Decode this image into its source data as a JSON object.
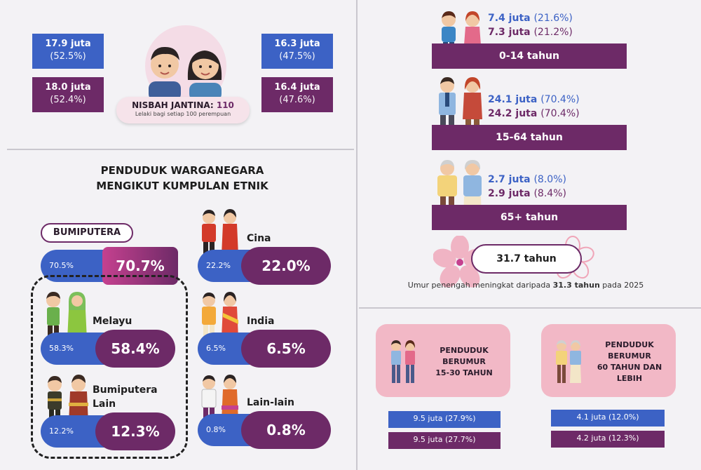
{
  "gender": {
    "male_left": {
      "value": "17.9 juta",
      "pct": "(52.5%)"
    },
    "female_left": {
      "value": "18.0 juta",
      "pct": "(52.4%)"
    },
    "male_right": {
      "value": "16.3 juta",
      "pct": "(47.5%)"
    },
    "female_right": {
      "value": "16.4 juta",
      "pct": "(47.6%)"
    },
    "ratio_label": "NISBAH JANTINA:",
    "ratio_value": "110",
    "ratio_note": "Lelaki bagi setiap 100 perempuan"
  },
  "ethnic": {
    "title_line1": "PENDUDUK WARGANEGARA",
    "title_line2": "MENGIKUT KUMPULAN ETNIK",
    "bumiputera": {
      "label": "BUMIPUTERA",
      "old": "70.5%",
      "new": "70.7%"
    },
    "melayu": {
      "label": "Melayu",
      "old": "58.3%",
      "new": "58.4%"
    },
    "bumi_lain": {
      "label_line1": "Bumiputera",
      "label_line2": "Lain",
      "old": "12.2%",
      "new": "12.3%"
    },
    "cina": {
      "label": "Cina",
      "old": "22.2%",
      "new": "22.0%"
    },
    "india": {
      "label": "India",
      "old": "6.5%",
      "new": "6.5%"
    },
    "lain": {
      "label": "Lain-lain",
      "old": "0.8%",
      "new": "0.8%"
    }
  },
  "age": {
    "g1": {
      "a": "7.4 juta",
      "a_pct": "(21.6%)",
      "b": "7.3 juta",
      "b_pct": "(21.2%)",
      "label": "0-14 tahun"
    },
    "g2": {
      "a": "24.1 juta",
      "a_pct": "(70.4%)",
      "b": "24.2 juta",
      "b_pct": "(70.4%)",
      "label": "15-64 tahun"
    },
    "g3": {
      "a": "2.7 juta",
      "a_pct": "(8.0%)",
      "b": "2.9 juta",
      "b_pct": "(8.4%)",
      "label": "65+ tahun"
    },
    "median": "31.7 tahun",
    "median_note_prefix": "Umur penengah meningkat daripada",
    "median_note_bold": "31.3 tahun",
    "median_note_suffix": "pada 2025"
  },
  "youth": {
    "line1": "PENDUDUK",
    "line2": "BERUMUR",
    "line3": "15-30 TAHUN",
    "a": "9.5 juta (27.9%)",
    "b": "9.5 juta (27.7%)"
  },
  "senior": {
    "line1": "PENDUDUK",
    "line2": "BERUMUR",
    "line3": "60 TAHUN DAN",
    "line4": "LEBIH",
    "a": "4.1 juta (12.0%)",
    "b": "4.2 juta (12.3%)"
  },
  "colors": {
    "blue": "#3c62c5",
    "purple": "#6d2a67",
    "pink": "#f2b8c6",
    "magenta": "#c5418f"
  }
}
